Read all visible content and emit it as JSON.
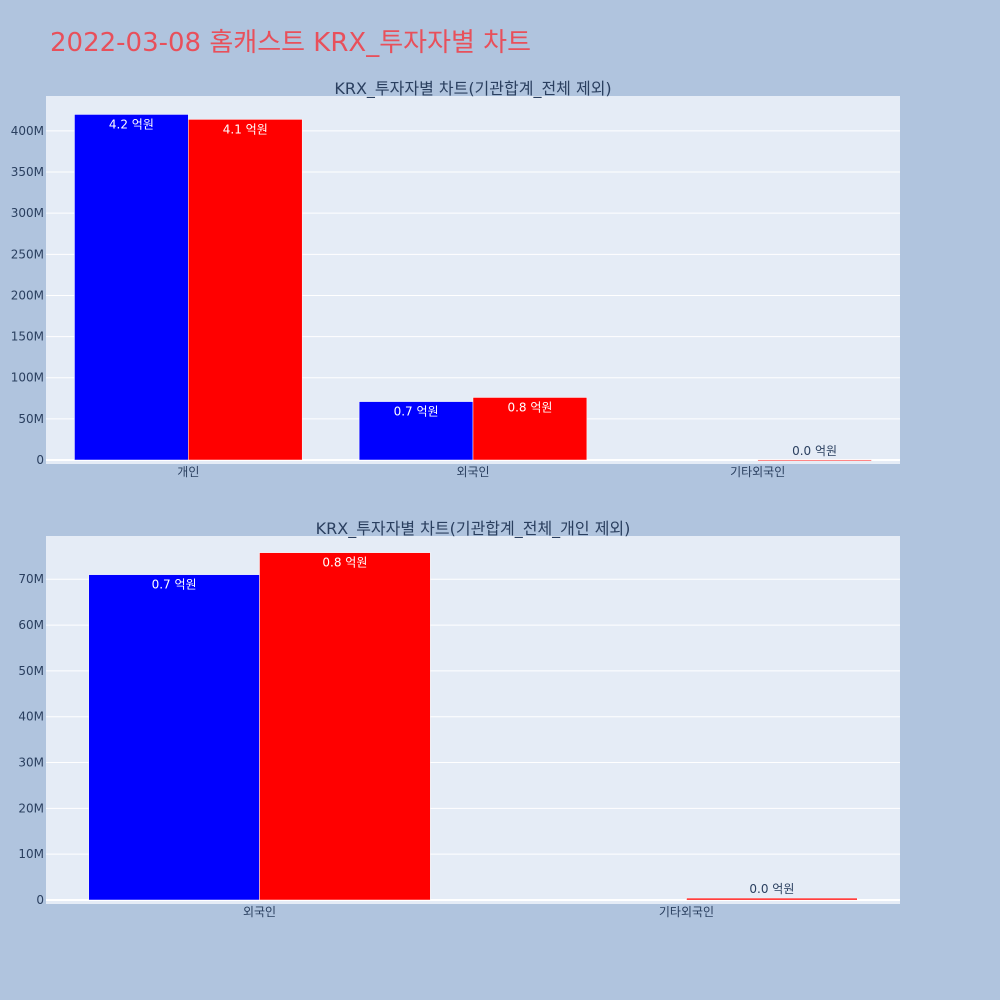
{
  "page_title": "2022-03-08 홈캐스트 KRX_투자자별 차트",
  "colors": {
    "background": "#b0c4de",
    "plot_bg": "#e5ecf6",
    "title": "#e8505b",
    "series_a": "#0000ff",
    "series_b": "#ff0000"
  },
  "chart_data": [
    {
      "type": "bar",
      "title": "KRX_투자자별 차트(기관합계_전체 제외)",
      "categories": [
        "개인",
        "외국인",
        "기타외국인"
      ],
      "series": [
        {
          "color": "#0000ff",
          "values": [
            420000000,
            71000000,
            0
          ]
        },
        {
          "color": "#ff0000",
          "values": [
            414000000,
            76000000,
            200000
          ]
        }
      ],
      "bar_labels": [
        [
          "4.2 억원",
          "0.7 억원",
          ""
        ],
        [
          "4.1 억원",
          "0.8 억원",
          "0.0 억원"
        ]
      ],
      "ylim": [
        0,
        440000000
      ],
      "yticks": [
        0,
        50000000,
        100000000,
        150000000,
        200000000,
        250000000,
        300000000,
        350000000,
        400000000
      ],
      "ytick_labels": [
        "0",
        "50M",
        "100M",
        "150M",
        "200M",
        "250M",
        "300M",
        "350M",
        "400M"
      ],
      "xlabel": "",
      "ylabel": "",
      "grid": true,
      "legend": "none"
    },
    {
      "type": "bar",
      "title": "KRX_투자자별 차트(기관합계_전체_개인 제외)",
      "categories": [
        "외국인",
        "기타외국인"
      ],
      "series": [
        {
          "color": "#0000ff",
          "values": [
            71000000,
            0
          ]
        },
        {
          "color": "#ff0000",
          "values": [
            75800000,
            400000
          ]
        }
      ],
      "bar_labels": [
        [
          "0.7 억원",
          ""
        ],
        [
          "0.8 억원",
          "0.0 억원"
        ]
      ],
      "ylim": [
        0,
        79000000
      ],
      "yticks": [
        0,
        10000000,
        20000000,
        30000000,
        40000000,
        50000000,
        60000000,
        70000000
      ],
      "ytick_labels": [
        "0",
        "10M",
        "20M",
        "30M",
        "40M",
        "50M",
        "60M",
        "70M"
      ],
      "xlabel": "",
      "ylabel": "",
      "grid": true,
      "legend": "none"
    }
  ]
}
